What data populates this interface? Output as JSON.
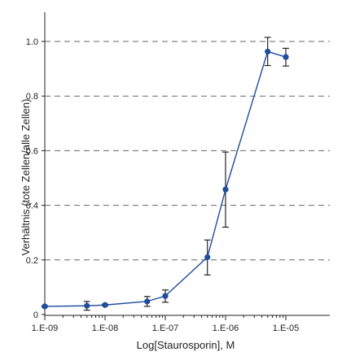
{
  "chart_data": {
    "type": "line",
    "title": "",
    "xlabel": "Log[Staurosporin], M",
    "ylabel": "Verhältnis (tote Zellen/alle Zellen)",
    "xscale": "log",
    "xlim": [
      1e-09,
      1e-05
    ],
    "ylim": [
      0,
      1.05
    ],
    "x_tick_values": [
      1e-09,
      1e-08,
      1e-07,
      1e-06,
      1e-05
    ],
    "x_tick_labels": [
      "1.E-09",
      "1.E-08",
      "1.E-07",
      "1.E-06",
      "1.E-05"
    ],
    "y_tick_values": [
      0,
      0.2,
      0.4,
      0.6,
      0.8,
      1.0
    ],
    "y_tick_labels": [
      "0",
      "0.2",
      "0.4",
      "0.6",
      "0.8",
      "1.0"
    ],
    "grid": "horizontal dashed",
    "series": [
      {
        "x": [
          1e-09,
          5e-09,
          1e-08,
          5e-08,
          1e-07,
          5e-07,
          1e-06,
          5e-06,
          1e-05
        ],
        "y": [
          0.03,
          0.032,
          0.035,
          0.048,
          0.068,
          0.21,
          0.458,
          0.963,
          0.943
        ],
        "err_low": [
          0.028,
          0.016,
          0.032,
          0.03,
          0.045,
          0.145,
          0.32,
          0.912,
          0.91
        ],
        "err_high": [
          0.032,
          0.048,
          0.038,
          0.066,
          0.09,
          0.273,
          0.595,
          1.015,
          0.975
        ],
        "color": "#1f4e9c"
      }
    ]
  }
}
